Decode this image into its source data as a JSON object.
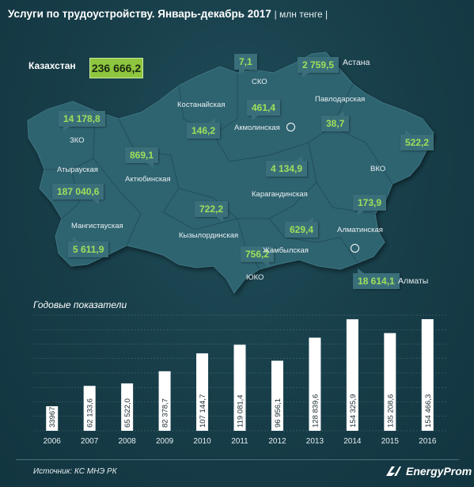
{
  "header": {
    "title": "Услуги по трудоустройству. Январь-декабрь 2017",
    "unit": "| млн тенге |"
  },
  "kazakhstan": {
    "label": "Казахстан",
    "total": "236 666,2"
  },
  "regions": [
    {
      "id": "sko",
      "name": "СКО",
      "value": "7,1"
    },
    {
      "id": "astana",
      "name": "Астана",
      "value": "2 759,5"
    },
    {
      "id": "kostanay",
      "name": "Костанайская",
      "value": "146,2"
    },
    {
      "id": "akmola",
      "name": "Акмолинская",
      "value": "461,4"
    },
    {
      "id": "pavlodar",
      "name": "Павлодарская",
      "value": "38,7"
    },
    {
      "id": "zko",
      "name": "ЗКО",
      "value": "14 178,8"
    },
    {
      "id": "vko",
      "name": "ВКО",
      "value": "522,2"
    },
    {
      "id": "aktobe",
      "name": "Актюбинская",
      "value": "869,1"
    },
    {
      "id": "atyrau",
      "name": "Атырауская",
      "value": "187 040,6"
    },
    {
      "id": "karaganda",
      "name": "Карагандинская",
      "value": "4 134,9"
    },
    {
      "id": "almaty_obl",
      "name": "Алматинская",
      "value": "173,9"
    },
    {
      "id": "kyzylorda",
      "name": "Кызылординская",
      "value": "722,2"
    },
    {
      "id": "zhambyl",
      "name": "Жамбылская",
      "value": "629,4"
    },
    {
      "id": "mangistau",
      "name": "Мангистауская",
      "value": "5 611,9"
    },
    {
      "id": "yuko",
      "name": "ЮКО",
      "value": "756,2"
    },
    {
      "id": "almaty_city",
      "name": "Алматы",
      "value": "18 614,1"
    }
  ],
  "colors": {
    "background": "#173d48",
    "map_fill": "#2e6370",
    "bubble": "#3a6f7a",
    "value_green": "#9fe05a",
    "total_box": "#8ec63f",
    "bar": "#ffffff"
  },
  "chart_data": {
    "type": "bar",
    "title": "Годовые показатели",
    "categories": [
      "2006",
      "2007",
      "2008",
      "2009",
      "2010",
      "2011",
      "2012",
      "2013",
      "2014",
      "2015",
      "2016"
    ],
    "values": [
      33967.2,
      62133.6,
      65522.0,
      82378.7,
      107144.7,
      119081.4,
      96956.1,
      128839.6,
      154325.9,
      135208.6,
      154466.3
    ],
    "value_labels": [
      "33967,2",
      "62 133,6",
      "65 522,0",
      "82 378,7",
      "107 144,7",
      "119 081,4",
      "96 956,1",
      "128 839,6",
      "154 325,9",
      "135 208,6",
      "154 466,3"
    ],
    "ylim": [
      0,
      160000
    ],
    "grid": true,
    "xlabel": "",
    "ylabel": ""
  },
  "footer": {
    "source": "Источник: КС МНЭ РК",
    "logo_text": "EnergyProm"
  }
}
